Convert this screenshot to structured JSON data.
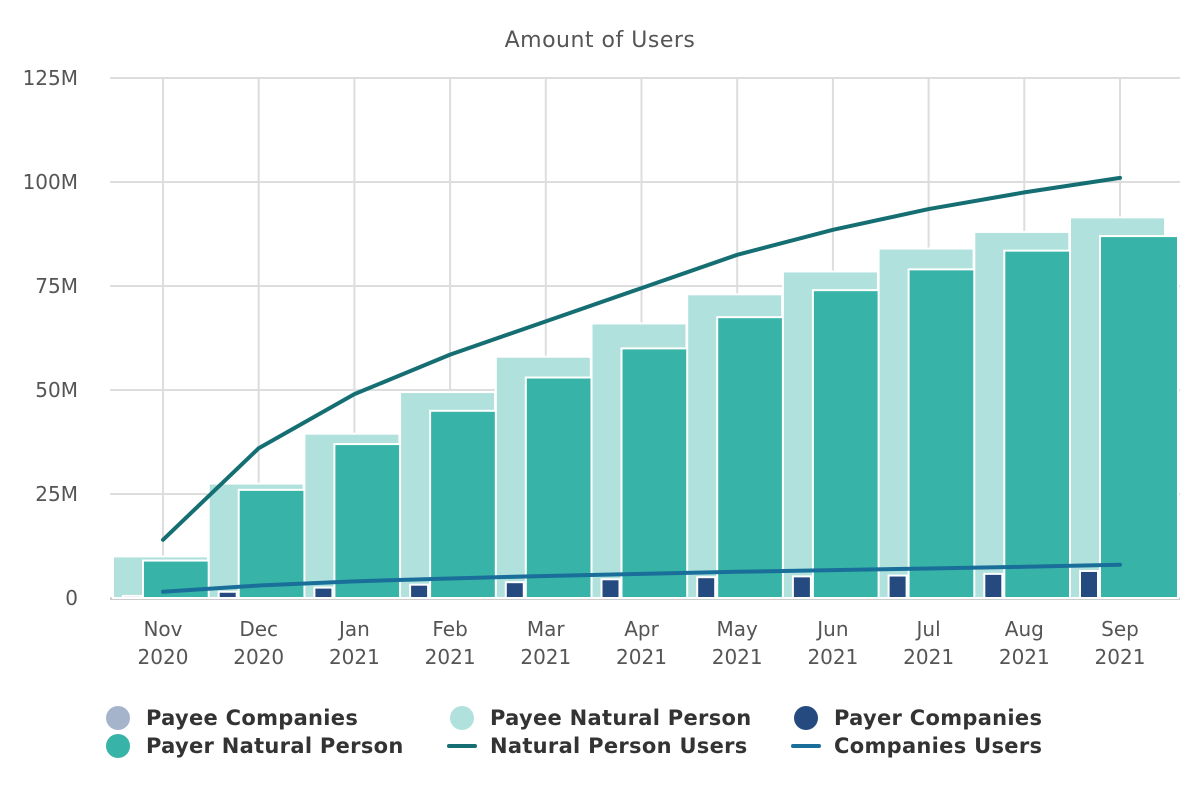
{
  "chart_data": {
    "type": "bar",
    "title": "Amount of Users",
    "xlabel": "",
    "ylabel": "",
    "ylim": [
      0,
      125000000
    ],
    "y_ticks": [
      {
        "value": 0,
        "label": "0"
      },
      {
        "value": 25000000,
        "label": "25M"
      },
      {
        "value": 50000000,
        "label": "50M"
      },
      {
        "value": 75000000,
        "label": "75M"
      },
      {
        "value": 100000000,
        "label": "100M"
      },
      {
        "value": 125000000,
        "label": "125M"
      }
    ],
    "categories": [
      {
        "month": "Nov",
        "year": "2020"
      },
      {
        "month": "Dec",
        "year": "2020"
      },
      {
        "month": "Jan",
        "year": "2021"
      },
      {
        "month": "Feb",
        "year": "2021"
      },
      {
        "month": "Mar",
        "year": "2021"
      },
      {
        "month": "Apr",
        "year": "2021"
      },
      {
        "month": "May",
        "year": "2021"
      },
      {
        "month": "Jun",
        "year": "2021"
      },
      {
        "month": "Jul",
        "year": "2021"
      },
      {
        "month": "Aug",
        "year": "2021"
      },
      {
        "month": "Sep",
        "year": "2021"
      }
    ],
    "grid": true,
    "legend_position": "bottom",
    "series": [
      {
        "name": "Payee Companies",
        "kind": "bar",
        "color": "#a5b3cb",
        "values": [
          0,
          0,
          0,
          0,
          0,
          0,
          0,
          0,
          0,
          0,
          0
        ]
      },
      {
        "name": "Payee Natural Person",
        "kind": "bar",
        "color": "#b0e1dc",
        "values": [
          10000000,
          27500000,
          39500000,
          49500000,
          58000000,
          66000000,
          73000000,
          78500000,
          84000000,
          88000000,
          91500000
        ]
      },
      {
        "name": "Payer Companies",
        "kind": "bar",
        "color": "#244a80",
        "values": [
          500000,
          1500000,
          2500000,
          3200000,
          3800000,
          4500000,
          5000000,
          5200000,
          5400000,
          5800000,
          6500000
        ]
      },
      {
        "name": "Payer Natural Person",
        "kind": "bar",
        "color": "#37b3a8",
        "values": [
          9000000,
          26000000,
          37000000,
          45000000,
          53000000,
          60000000,
          67500000,
          74000000,
          79000000,
          83500000,
          87000000
        ]
      },
      {
        "name": "Natural Person Users",
        "kind": "line",
        "color": "#146e72",
        "values": [
          14000000,
          36000000,
          49000000,
          58500000,
          66500000,
          74500000,
          82500000,
          88500000,
          93500000,
          97500000,
          101000000
        ]
      },
      {
        "name": "Companies Users",
        "kind": "line",
        "color": "#1a6f9a",
        "values": [
          1500000,
          3000000,
          4000000,
          4700000,
          5300000,
          5800000,
          6300000,
          6700000,
          7100000,
          7500000,
          8000000
        ]
      }
    ]
  }
}
